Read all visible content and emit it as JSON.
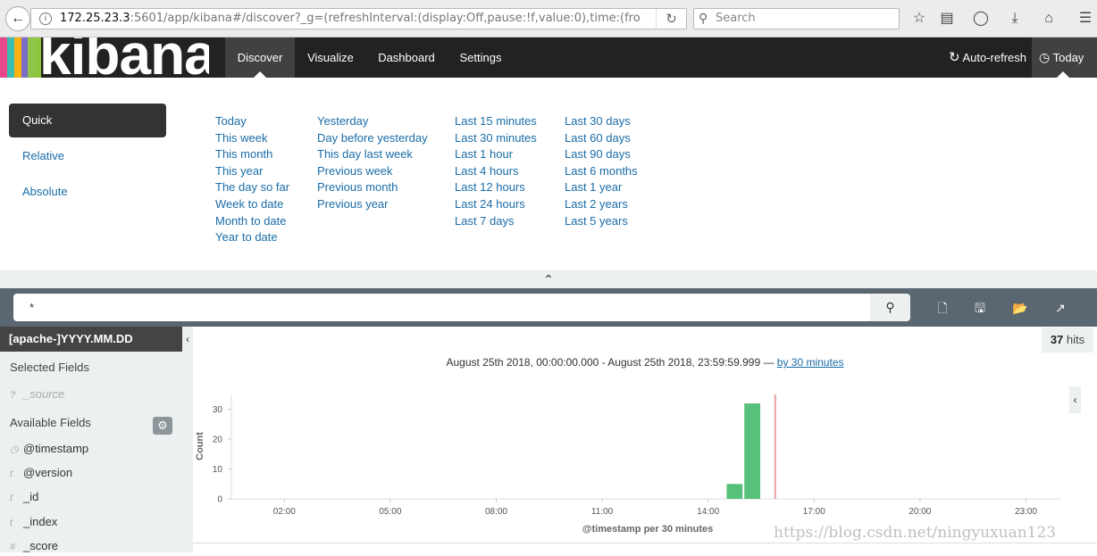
{
  "browser": {
    "url_host": "172.25.23.3",
    "url_rest": ":5601/app/kibana#/discover?_g=(refreshInterval:(display:Off,pause:!f,value:0),time:(fro",
    "search_placeholder": "Search"
  },
  "nav": {
    "logo_text": "kibana",
    "logo_colors": [
      "#e8478b",
      "#3ebeb0",
      "#f9b110",
      "#7c6dc6",
      "#91c54b",
      "#8cc63f"
    ],
    "tabs": [
      {
        "label": "Discover",
        "active": true
      },
      {
        "label": "Visualize",
        "active": false
      },
      {
        "label": "Dashboard",
        "active": false
      },
      {
        "label": "Settings",
        "active": false
      }
    ],
    "auto_refresh": "Auto-refresh",
    "time_label": "Today"
  },
  "picker": {
    "modes": [
      "Quick",
      "Relative",
      "Absolute"
    ],
    "active_mode": "Quick",
    "quick_columns": [
      [
        "Today",
        "This week",
        "This month",
        "This year",
        "The day so far",
        "Week to date",
        "Month to date",
        "Year to date"
      ],
      [
        "Yesterday",
        "Day before yesterday",
        "This day last week",
        "Previous week",
        "Previous month",
        "Previous year"
      ],
      [
        "Last 15 minutes",
        "Last 30 minutes",
        "Last 1 hour",
        "Last 4 hours",
        "Last 12 hours",
        "Last 24 hours",
        "Last 7 days"
      ],
      [
        "Last 30 days",
        "Last 60 days",
        "Last 90 days",
        "Last 6 months",
        "Last 1 year",
        "Last 2 years",
        "Last 5 years"
      ]
    ]
  },
  "query": {
    "value": "*"
  },
  "sidebar": {
    "index_pattern": "[apache-]YYYY.MM.DD",
    "selected_heading": "Selected Fields",
    "selected_fields": [
      {
        "type": "?",
        "name": "_source"
      }
    ],
    "available_heading": "Available Fields",
    "available_fields": [
      {
        "type": "clock",
        "name": "@timestamp"
      },
      {
        "type": "t",
        "name": "@version"
      },
      {
        "type": "t",
        "name": "_id"
      },
      {
        "type": "t",
        "name": "_index"
      },
      {
        "type": "#",
        "name": "_score"
      }
    ]
  },
  "results": {
    "hits_count": "37",
    "hits_label": "hits",
    "range_text": "August 25th 2018, 00:00:00.000 - August 25th 2018, 23:59:59.999 — ",
    "interval_link": "by 30 minutes"
  },
  "chart_data": {
    "type": "bar",
    "xlabel": "@timestamp per 30 minutes",
    "ylabel": "Count",
    "ylim": [
      0,
      35
    ],
    "yticks": [
      0,
      10,
      20,
      30
    ],
    "x_tick_labels": [
      "02:00",
      "05:00",
      "08:00",
      "11:00",
      "14:00",
      "17:00",
      "20:00",
      "23:00"
    ],
    "bar_color": "#57c17b",
    "marker_color": "#e8a0a0",
    "x_start_hour": 0.5,
    "x_end_hour": 24,
    "bars": [
      {
        "start": "14:30",
        "end": "15:00",
        "value": 5
      },
      {
        "start": "15:00",
        "end": "15:30",
        "value": 32
      }
    ],
    "current_time_marker": "15:54"
  },
  "watermark": "https://blog.csdn.net/ningyuxuan123"
}
